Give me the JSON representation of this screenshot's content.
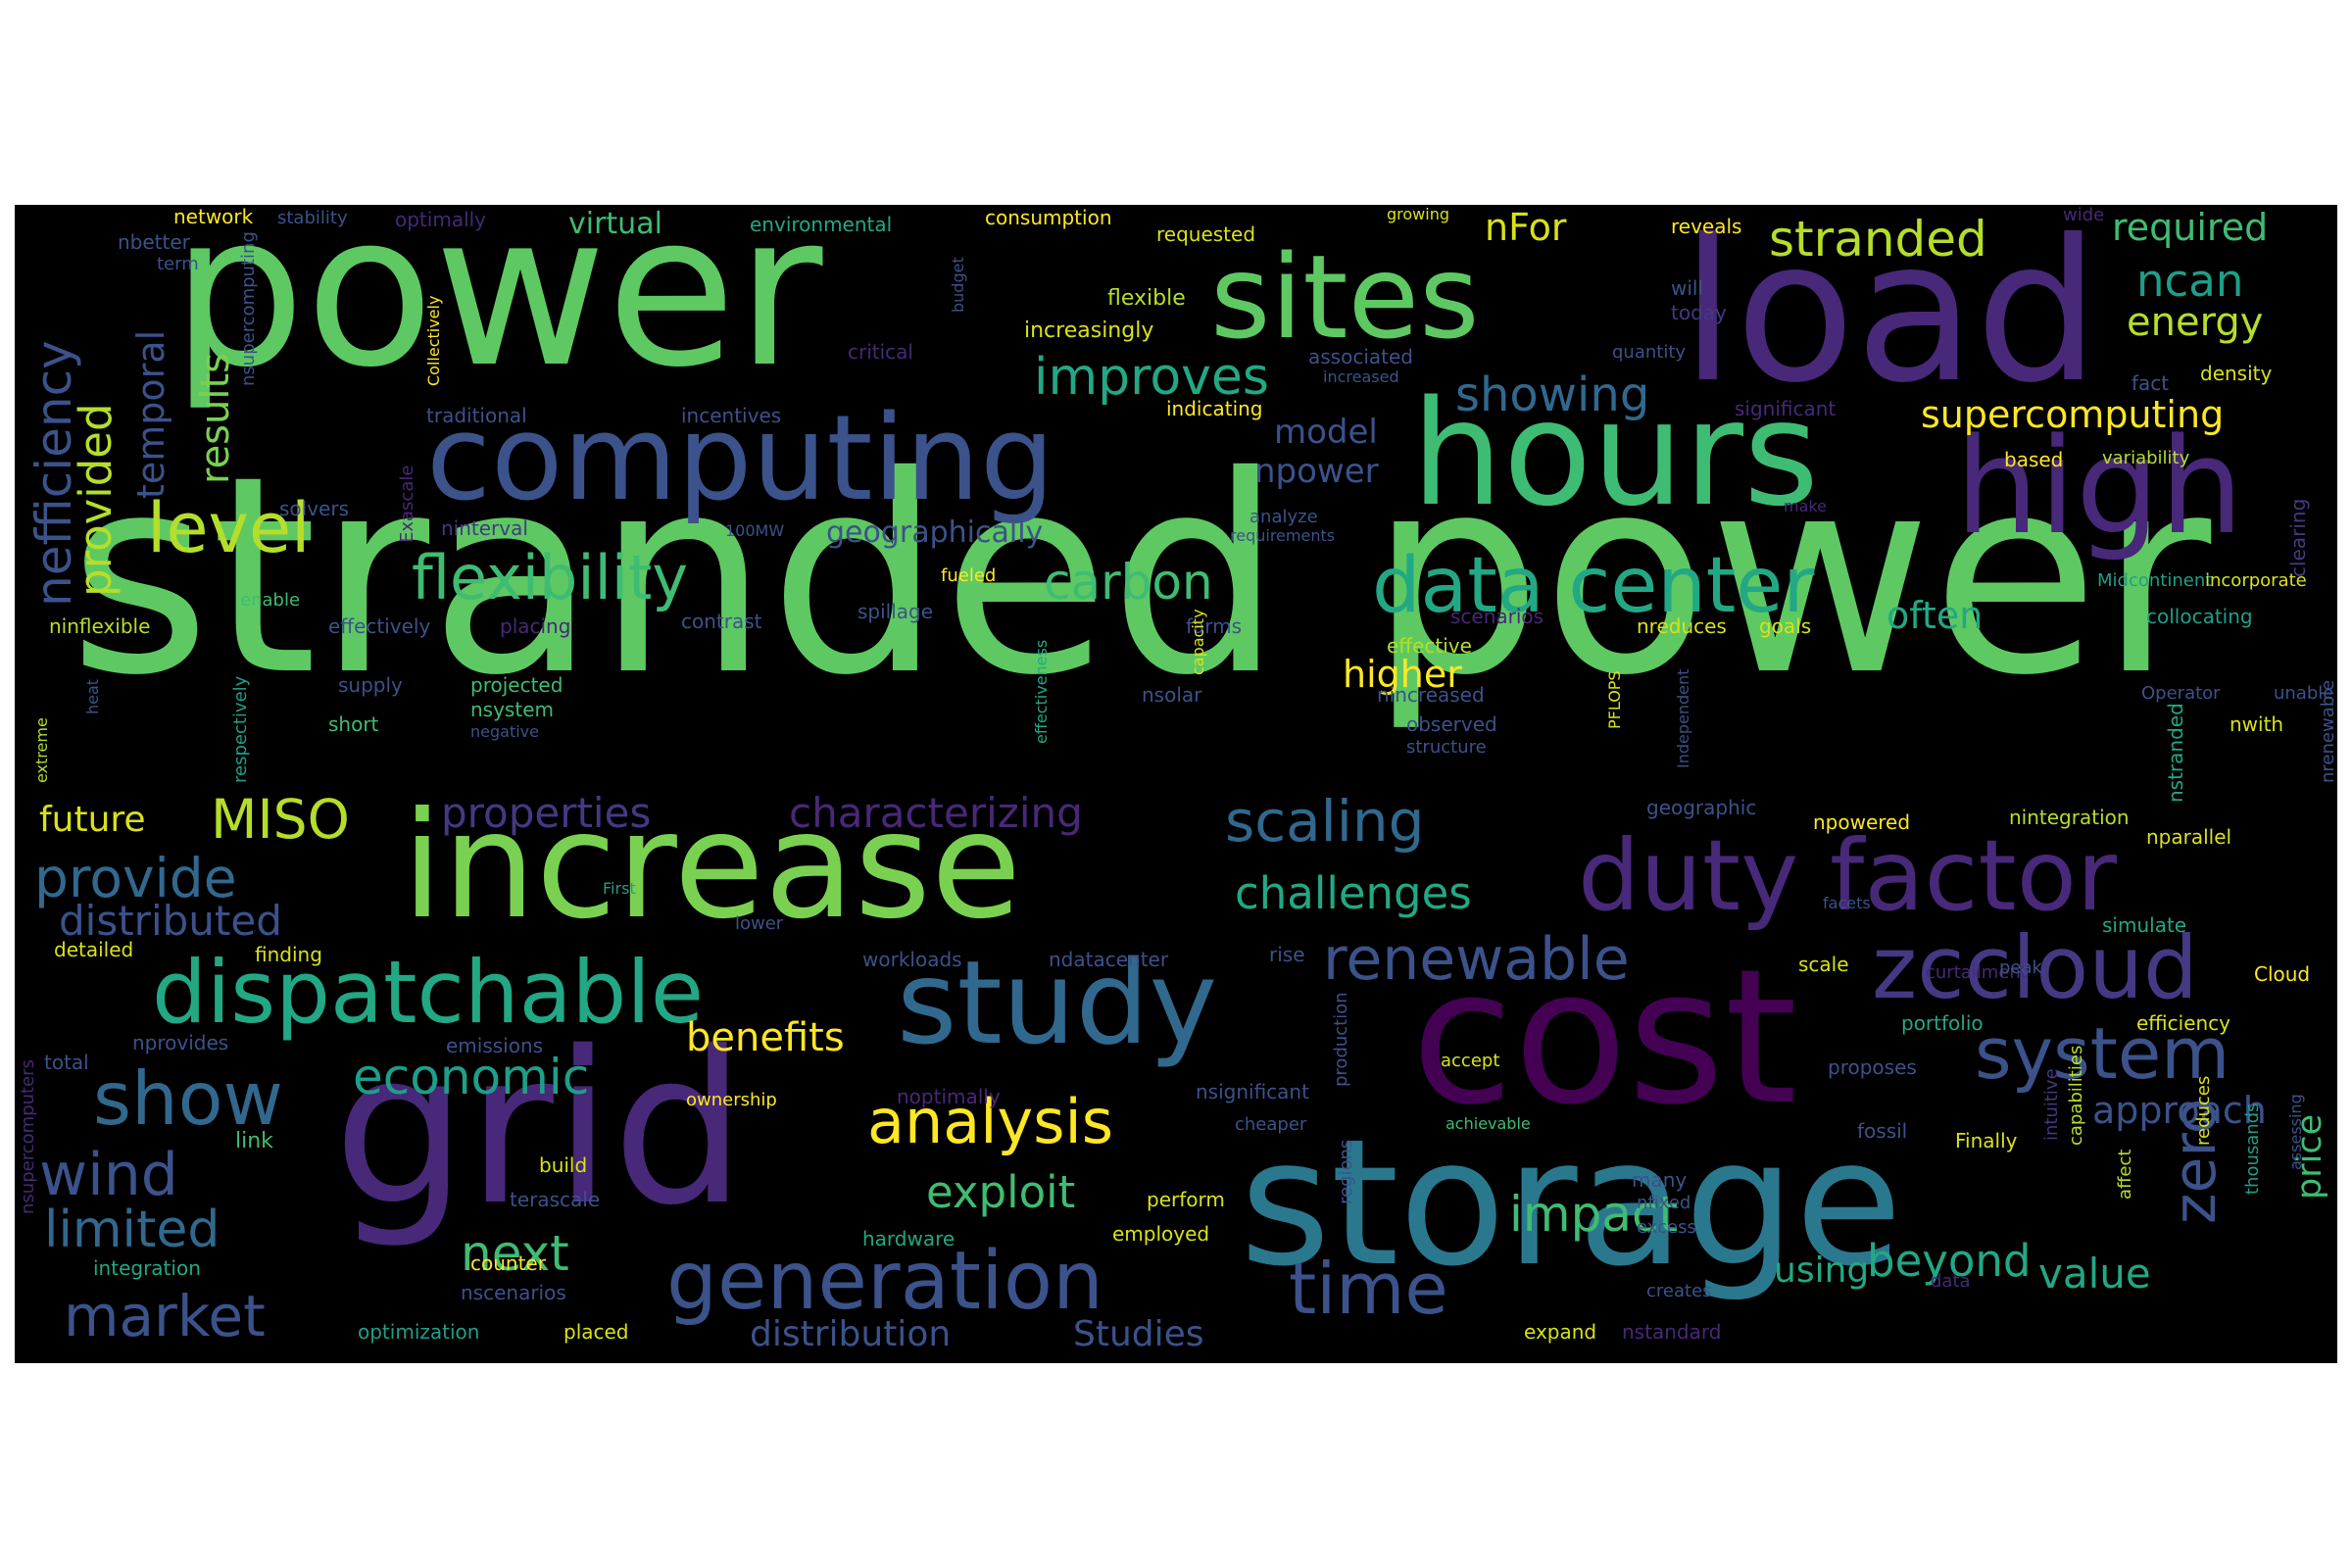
{
  "palette": {
    "light_green": "#5ec962",
    "green": "#3fbc73",
    "teal_green": "#22a884",
    "teal": "#1f9e89",
    "cyan_blue": "#2a788e",
    "blue": "#31688e",
    "slate": "#3b528b",
    "indigo": "#443983",
    "purple": "#482878",
    "dark_purple": "#440154",
    "lime": "#b5de2b",
    "yellow": "#fde725",
    "yellow_green": "#d8e219",
    "bright_green": "#7ad151"
  },
  "words": [
    "stranded power",
    "power",
    "load",
    "grid",
    "cost",
    "storage",
    "increase",
    "hours",
    "high",
    "computing",
    "sites",
    "study",
    "data center",
    "duty factor",
    "dispatchable",
    "generation",
    "zccloud",
    "flexibility",
    "level",
    "stranded",
    "renewable",
    "show",
    "system",
    "time",
    "analysis",
    "scaling",
    "improves",
    "economic",
    "wind",
    "next",
    "market",
    "limited",
    "provide",
    "distributed",
    "MISO",
    "properties",
    "characterizing",
    "nefficiency",
    "provided",
    "results",
    "temporal",
    "carbon",
    "impact",
    "exploit",
    "beyond",
    "challenges",
    "benefits",
    "zero",
    "value",
    "distribution",
    "Studies",
    "showing",
    "model",
    "npower",
    "supercomputing",
    "energy",
    "ncan",
    "required",
    "often",
    "higher",
    "approach",
    "price",
    "using",
    "future",
    "geographically",
    "nFor",
    "virtual",
    "consumption",
    "environmental",
    "network",
    "stability",
    "optimally",
    "nbetter",
    "term",
    "nsupercomputing",
    "flexible",
    "increasingly",
    "critical",
    "budget",
    "requested",
    "growing",
    "reveals",
    "will",
    "today",
    "wide",
    "associated",
    "increased",
    "quantity",
    "fact",
    "density",
    "significant",
    "indicating",
    "traditional",
    "incentives",
    "Collectively",
    "Exascale",
    "solvers",
    "ninterval",
    "100MW",
    "requirements",
    "analyze",
    "fueled",
    "enable",
    "ninflexible",
    "effectively",
    "placing",
    "contrast",
    "spillage",
    "farms",
    "effective",
    "capacity",
    "scenarios",
    "nreduces",
    "goals",
    "collocating",
    "Midcontinent",
    "based",
    "variability",
    "make",
    "clearing",
    "incorporate",
    "supply",
    "projected",
    "heat",
    "extreme",
    "short",
    "nsystem",
    "negative",
    "respectively",
    "effectiveness",
    "nsolar",
    "nincreased",
    "observed",
    "structure",
    "PFLOPS",
    "Independent",
    "Operator",
    "unable",
    "nwith",
    "nrenewable",
    "nstranded",
    "geographic",
    "npowered",
    "nintegration",
    "nparallel",
    "First",
    "lower",
    "facets",
    "simulate",
    "detailed",
    "finding",
    "workloads",
    "ndatacenter",
    "rise",
    "curtailment",
    "scale",
    "peak",
    "Cloud",
    "nsupercomputers",
    "nprovides",
    "emissions",
    "total",
    "accept",
    "noptimally",
    "nsignificant",
    "portfolio",
    "efficiency",
    "proposes",
    "ownership",
    "production",
    "cheaper",
    "achievable",
    "fossil",
    "Finally",
    "assessing",
    "link",
    "build",
    "regions",
    "intuitive",
    "capabilities",
    "affect",
    "reduces",
    "thousands",
    "terascale",
    "perform",
    "employed",
    "nfixed",
    "many",
    "excess",
    "hardware",
    "integration",
    "counter",
    "nscenarios",
    "creates",
    "data",
    "optimization",
    "placed",
    "expand",
    "nstandard"
  ]
}
